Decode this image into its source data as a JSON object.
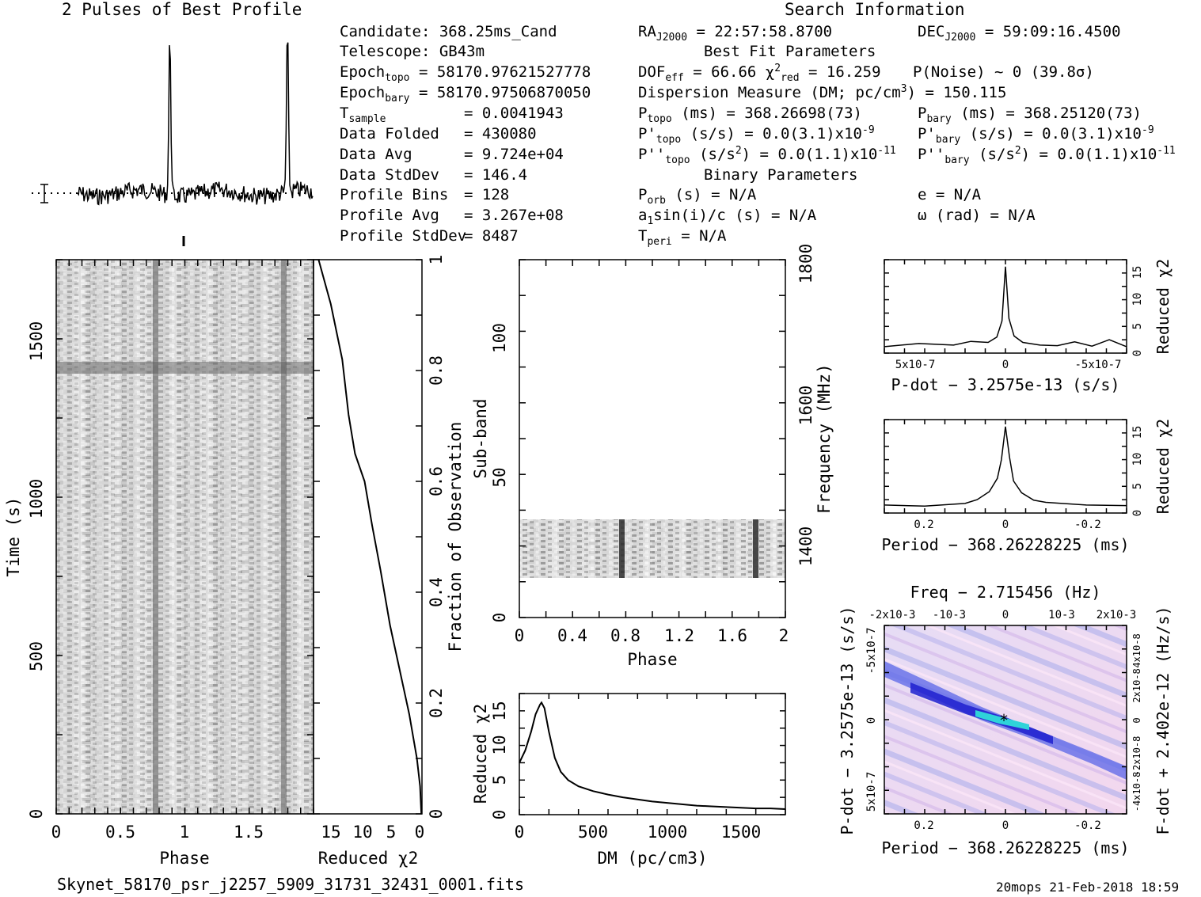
{
  "header": {
    "profile_title": "2 Pulses of Best Profile",
    "search_title": "Search Information",
    "best_fit_title": "Best Fit Parameters",
    "binary_title": "Binary Parameters"
  },
  "info": {
    "candidate": "Candidate:  368.25ms_Cand",
    "telescope": "Telescope:  GB43m",
    "epoch_topo": "58170.97621527778",
    "epoch_bary": "58170.97506870050",
    "t_sample": "0.0041943",
    "data_folded": "430080",
    "data_avg": "9.724e+04",
    "data_stddev": "146.4",
    "profile_bins": "128",
    "profile_avg": "3.267e+08",
    "profile_stddev": "8487"
  },
  "search": {
    "ra": "22:57:58.8700",
    "dec": "59:09:16.4500",
    "dof_eff": "66.66",
    "chi2_red": "16.259",
    "p_noise": "P(Noise) ~ 0   (39.8σ)",
    "dm": "150.115",
    "p_topo": "368.26698(73)",
    "p_bary": "368.25120(73)",
    "pd_topo": "0.0(3.1)x10",
    "pd_bary": "0.0(3.1)x10",
    "pd_exp": "-9",
    "pdd_topo": "0.0(1.1)x10",
    "pdd_bary": "0.0(1.1)x10",
    "pdd_exp": "-11",
    "p_orb": "N/A",
    "e": "e = N/A",
    "a1sini": "N/A",
    "omega": "ω (rad) = N/A",
    "t_peri": "N/A"
  },
  "footer": {
    "filename": "Skynet_58170_psr_j2257_5909_31731_32431_0001.fits",
    "stamp": "20mops 21-Feb-2018 18:59"
  },
  "chart_data": [
    {
      "type": "line",
      "panel": "profile",
      "title": "2 Pulses of Best Profile",
      "x_range": [
        0,
        2
      ],
      "peaks": [
        0.785,
        1.785
      ]
    },
    {
      "type": "heatmap",
      "panel": "time-phase",
      "xlabel": "Phase",
      "ylabel": "Time (s)",
      "x_ticks": [
        "0",
        "0.5",
        "1",
        "1.5"
      ],
      "y_ticks": [
        "0",
        "500",
        "1000",
        "1500"
      ],
      "xlim": [
        0,
        2
      ],
      "ylim": [
        0,
        1760
      ]
    },
    {
      "type": "line",
      "panel": "cumulative-chi2",
      "xlabel": "Reduced χ2",
      "ylabel": "Fraction of Observation",
      "x_ticks": [
        "15",
        "10",
        "5",
        "0"
      ],
      "y_ticks": [
        "0",
        "0.2",
        "0.4",
        "0.6",
        "0.8",
        "1"
      ],
      "x": [
        16.2,
        14.3,
        12.5,
        11.5,
        10.5,
        9.0,
        7.8,
        6.5,
        5.0,
        3.5,
        2.0,
        0.8,
        0.3,
        0.1
      ],
      "y": [
        1.0,
        0.92,
        0.82,
        0.72,
        0.65,
        0.6,
        0.52,
        0.44,
        0.34,
        0.26,
        0.18,
        0.1,
        0.05,
        0.0
      ]
    },
    {
      "type": "heatmap",
      "panel": "subband-phase",
      "xlabel": "Phase",
      "ylabel": "Sub-band",
      "y2label": "Frequency (MHz)",
      "x_ticks": [
        "0",
        "0.4",
        "0.8",
        "1.2",
        "1.6",
        "2"
      ],
      "y_ticks": [
        "0",
        "50",
        "100"
      ],
      "y2_ticks": [
        "1400",
        "1600",
        "1800"
      ],
      "xlim": [
        0,
        2
      ],
      "ylim": [
        0,
        128
      ],
      "band_range": [
        15,
        35
      ]
    },
    {
      "type": "line",
      "panel": "dm",
      "xlabel": "DM (pc/cm3)",
      "ylabel": "Reduced χ2",
      "x_ticks": [
        "0",
        "500",
        "1000",
        "1500"
      ],
      "y_ticks": [
        "0",
        "5",
        "10",
        "15"
      ],
      "xlim": [
        0,
        1800
      ],
      "ylim": [
        0,
        17.5
      ],
      "x": [
        0,
        40,
        80,
        110,
        140,
        150,
        170,
        200,
        240,
        280,
        330,
        400,
        500,
        600,
        700,
        800,
        900,
        1000,
        1100,
        1200,
        1300,
        1400,
        1500,
        1600,
        1700,
        1800
      ],
      "y": [
        7.5,
        9.3,
        12.0,
        14.5,
        15.9,
        16.2,
        15.4,
        12.0,
        8.2,
        6.2,
        5.0,
        4.1,
        3.4,
        2.9,
        2.5,
        2.2,
        1.9,
        1.7,
        1.5,
        1.3,
        1.2,
        1.1,
        1.0,
        0.9,
        0.9,
        0.8
      ]
    },
    {
      "type": "line",
      "panel": "pdot",
      "xlabel": "P-dot − 3.2575e-13 (s/s)",
      "ylabel": "Reduced χ2",
      "x_ticks": [
        "5x10-7",
        "0",
        "-5x10-7"
      ],
      "y_ticks": [
        "0",
        "5",
        "10",
        "15"
      ],
      "xlim": [
        7e-07,
        -7e-07
      ],
      "ylim": [
        0,
        17.5
      ],
      "x": [
        7e-07,
        5e-07,
        3e-07,
        2e-07,
        1e-07,
        5e-08,
        2e-08,
        0,
        -2e-08,
        -5e-08,
        -1e-07,
        -2e-07,
        -3e-07,
        -4e-07,
        -5e-07,
        -6e-07,
        -7e-07
      ],
      "y": [
        1.2,
        1.8,
        1.5,
        2.2,
        2.0,
        3.0,
        6.0,
        16.2,
        6.5,
        3.2,
        2.0,
        1.5,
        1.4,
        2.1,
        1.3,
        2.5,
        1.2
      ]
    },
    {
      "type": "line",
      "panel": "period",
      "xlabel": "Period − 368.26228225 (ms)",
      "ylabel": "Reduced χ2",
      "x_ticks": [
        "0.2",
        "0",
        "-0.2"
      ],
      "y_ticks": [
        "0",
        "5",
        "10",
        "15"
      ],
      "xlim": [
        0.3,
        -0.3
      ],
      "ylim": [
        0,
        17.5
      ],
      "x": [
        0.3,
        0.2,
        0.1,
        0.07,
        0.04,
        0.02,
        0.01,
        0,
        -0.01,
        -0.02,
        -0.04,
        -0.07,
        -0.1,
        -0.2,
        -0.3
      ],
      "y": [
        1.5,
        1.3,
        1.8,
        2.5,
        4.0,
        6.5,
        10.0,
        16.2,
        10.5,
        6.0,
        3.8,
        2.4,
        2.0,
        1.5,
        1.4
      ]
    },
    {
      "type": "heatmap",
      "panel": "period-pdot",
      "title": "Freq − 2.715456 (Hz)",
      "xlabel": "Period − 368.26228225 (ms)",
      "ylabel": "P-dot − 3.2575e-13 (s/s)",
      "y2label": "F-dot + 2.402e-12 (Hz/s)",
      "x_ticks": [
        "0.2",
        "0",
        "-0.2"
      ],
      "x2_ticks": [
        "-2x10-3",
        "-10-3",
        "0",
        "10-3",
        "2x10-3"
      ],
      "y_ticks": [
        "5x10-7",
        "0",
        "-5x10-7"
      ],
      "y2_ticks": [
        "-4x10-8",
        "-2x10-8",
        "0",
        "2x10-8",
        "4x10-8"
      ],
      "xlim": [
        0.3,
        -0.3
      ],
      "ylim": [
        7e-07,
        -7e-07
      ],
      "best": [
        0,
        0
      ]
    }
  ]
}
